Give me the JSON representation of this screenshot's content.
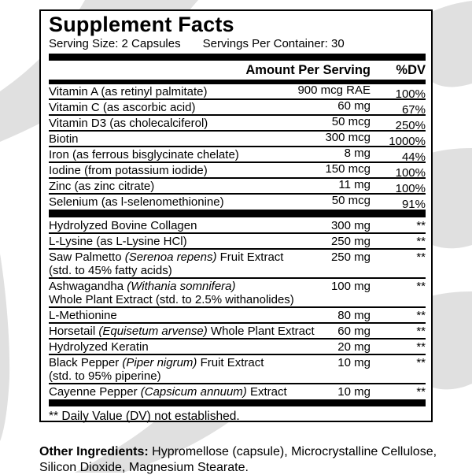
{
  "colors": {
    "stripe": "#e0e0e0",
    "ink": "#000000",
    "panel_bg": "#ffffff"
  },
  "panel": {
    "title": "Supplement Facts",
    "serving_size": "Serving Size: 2 Capsules",
    "servings_per_container": "Servings Per Container: 30",
    "col_amount": "Amount Per Serving",
    "col_dv": "%DV",
    "footnote": "** Daily Value (DV) not established."
  },
  "sections": [
    {
      "rows": [
        {
          "name": [
            {
              "t": "Vitamin A (as retinyl palmitate)"
            }
          ],
          "amount": "900 mcg RAE",
          "dv": "100%",
          "dv_percent": true
        },
        {
          "name": [
            {
              "t": "Vitamin C (as ascorbic acid)"
            }
          ],
          "amount": "60 mg",
          "dv": "67%",
          "dv_percent": true
        },
        {
          "name": [
            {
              "t": "Vitamin D3 (as cholecalciferol)"
            }
          ],
          "amount": "50 mcg",
          "dv": "250%",
          "dv_percent": true
        },
        {
          "name": [
            {
              "t": "Biotin"
            }
          ],
          "amount": "300 mcg",
          "dv": "1000%",
          "dv_percent": true
        },
        {
          "name": [
            {
              "t": "Iron (as ferrous bisglycinate chelate)"
            }
          ],
          "amount": "8 mg",
          "dv": "44%",
          "dv_percent": true
        },
        {
          "name": [
            {
              "t": "Iodine (from potassium iodide)"
            }
          ],
          "amount": "150 mcg",
          "dv": "100%",
          "dv_percent": true
        },
        {
          "name": [
            {
              "t": "Zinc (as zinc citrate)"
            }
          ],
          "amount": "11 mg",
          "dv": "100%",
          "dv_percent": true
        },
        {
          "name": [
            {
              "t": "Selenium (as l-selenomethionine)"
            }
          ],
          "amount": "50 mcg",
          "dv": "91%",
          "dv_percent": true
        }
      ]
    },
    {
      "rows": [
        {
          "name": [
            {
              "t": "Hydrolyzed Bovine Collagen"
            }
          ],
          "amount": "300 mg",
          "dv": "**",
          "dv_percent": false
        },
        {
          "name": [
            {
              "t": "L-Lysine (as L-Lysine HCl)"
            }
          ],
          "amount": "250 mg",
          "dv": "**",
          "dv_percent": false
        },
        {
          "name": [
            {
              "t": "Saw Palmetto "
            },
            {
              "t": "(Serenoa repens)",
              "i": true
            },
            {
              "t": " Fruit Extract"
            }
          ],
          "line2": "(std. to 45% fatty acids)",
          "amount": "250 mg",
          "dv": "**",
          "dv_percent": false
        },
        {
          "name": [
            {
              "t": "Ashwagandha "
            },
            {
              "t": "(Withania somnifera)",
              "i": true
            }
          ],
          "line2": "Whole Plant Extract (std. to 2.5% withanolides)",
          "amount": "100 mg",
          "dv": "**",
          "dv_percent": false
        },
        {
          "name": [
            {
              "t": "L-Methionine"
            }
          ],
          "amount": "80 mg",
          "dv": "**",
          "dv_percent": false
        },
        {
          "name": [
            {
              "t": "Horsetail "
            },
            {
              "t": "(Equisetum arvense)",
              "i": true
            },
            {
              "t": " Whole Plant Extract"
            }
          ],
          "amount": "60 mg",
          "dv": "**",
          "dv_percent": false
        },
        {
          "name": [
            {
              "t": "Hydrolyzed Keratin"
            }
          ],
          "amount": "20 mg",
          "dv": "**",
          "dv_percent": false
        },
        {
          "name": [
            {
              "t": "Black Pepper "
            },
            {
              "t": "(Piper nigrum)",
              "i": true
            },
            {
              "t": " Fruit Extract"
            }
          ],
          "line2": "(std. to 95% piperine)",
          "amount": "10 mg",
          "dv": "**",
          "dv_percent": false
        },
        {
          "name": [
            {
              "t": "Cayenne Pepper "
            },
            {
              "t": "(Capsicum annuum)",
              "i": true
            },
            {
              "t": " Extract"
            }
          ],
          "amount": "10 mg",
          "dv": "**",
          "dv_percent": false
        }
      ]
    }
  ],
  "other_ingredients": {
    "label": "Other Ingredients:",
    "text": " Hypromellose (capsule), Microcrystalline Cellulose, Silicon Dioxide, Magnesium Stearate."
  }
}
